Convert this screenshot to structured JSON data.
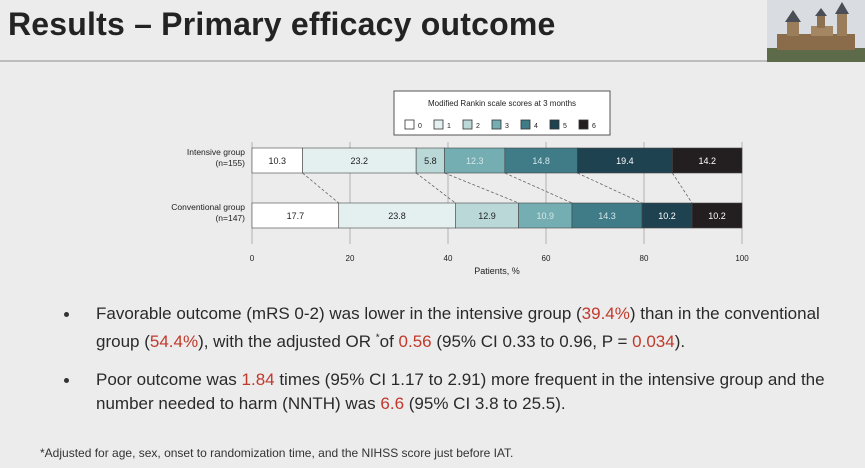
{
  "slide": {
    "title": "Results – Primary efficacy outcome"
  },
  "chart_data": {
    "type": "bar",
    "orientation": "horizontal",
    "stacked": true,
    "title": "Modified Rankin scale scores at 3 months",
    "xlabel": "Patients, %",
    "xlim": [
      0,
      100
    ],
    "xticks": [
      0,
      20,
      40,
      60,
      80,
      100
    ],
    "legend_position": "top",
    "categories": [
      "Intensive group (n=155)",
      "Conventional group (n=147)"
    ],
    "category_lines": [
      [
        "Intensive group",
        "(n=155)"
      ],
      [
        "Conventional group",
        "(n=147)"
      ]
    ],
    "series": [
      {
        "name": "0",
        "color": "#ffffff",
        "values": [
          10.3,
          17.7
        ]
      },
      {
        "name": "1",
        "color": "#e4efef",
        "values": [
          23.2,
          23.8
        ]
      },
      {
        "name": "2",
        "color": "#b9d8d7",
        "values": [
          5.8,
          12.9
        ]
      },
      {
        "name": "3",
        "color": "#74aeb3",
        "values": [
          12.3,
          10.9
        ]
      },
      {
        "name": "4",
        "color": "#3f7c88",
        "values": [
          14.8,
          14.3
        ]
      },
      {
        "name": "5",
        "color": "#1f4250",
        "values": [
          19.4,
          10.2
        ]
      },
      {
        "name": "6",
        "color": "#231f20",
        "values": [
          14.2,
          10.2
        ]
      }
    ],
    "data_labels": [
      [
        "10.3",
        "23.2",
        "5.8",
        "12.3",
        "14.8",
        "19.4",
        "14.2"
      ],
      [
        "17.7",
        "23.8",
        "12.9",
        "10.9",
        "14.3",
        "10.2",
        "10.2"
      ]
    ],
    "grid": true
  },
  "bullets": [
    [
      {
        "text": "Favorable outcome (mRS 0-2) was lower in the intensive group (",
        "hl": false
      },
      {
        "text": "39.4%",
        "hl": true
      },
      {
        "text": ") than in the conventional group (",
        "hl": false
      },
      {
        "text": "54.4%",
        "hl": true
      },
      {
        "text": "), with the adjusted OR ",
        "hl": false
      },
      {
        "text": "*",
        "hl": false,
        "sup": true
      },
      {
        "text": "of ",
        "hl": false
      },
      {
        "text": "0.56",
        "hl": true
      },
      {
        "text": " (95% CI 0.33 to 0.96, P = ",
        "hl": false
      },
      {
        "text": "0.034",
        "hl": true
      },
      {
        "text": ").",
        "hl": false
      }
    ],
    [
      {
        "text": "Poor outcome was ",
        "hl": false
      },
      {
        "text": "1.84",
        "hl": true
      },
      {
        "text": " times (95% CI 1.17 to 2.91) more frequent in the intensive group and the number needed to harm (NNTH) was ",
        "hl": false
      },
      {
        "text": "6.6",
        "hl": true
      },
      {
        "text": " (95% CI 3.8 to 25.5).",
        "hl": false
      }
    ]
  ],
  "footnote": "*Adjusted for age, sex, onset to randomization time, and the NIHSS score just before IAT.",
  "logo_icon": "castle-logo-icon"
}
